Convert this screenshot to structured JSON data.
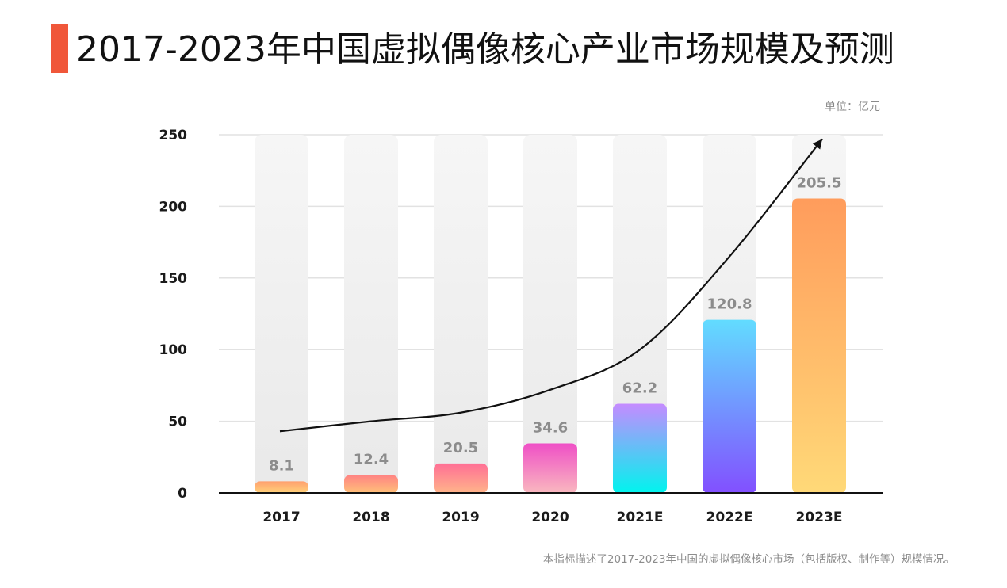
{
  "header": {
    "title": "2017-2023年中国虚拟偶像核心产业市场规模及预测",
    "accent_color": "#f0573a"
  },
  "unit_label": "单位：亿元",
  "footnote": "本指标描述了2017-2023年中国的虚拟偶像核心市场（包括版权、制作等）规模情况。",
  "chart_data": {
    "type": "bar",
    "title": "2017-2023年中国虚拟偶像核心产业市场规模及预测",
    "xlabel": "",
    "ylabel": "",
    "unit": "亿元",
    "categories": [
      "2017",
      "2018",
      "2019",
      "2020",
      "2021E",
      "2022E",
      "2023E"
    ],
    "values": [
      8.1,
      12.4,
      20.5,
      34.6,
      62.2,
      120.8,
      205.5
    ],
    "value_labels": [
      "8.1",
      "12.4",
      "20.5",
      "34.6",
      "62.2",
      "120.8",
      "205.5"
    ],
    "ylim": [
      0,
      250
    ],
    "yticks": [
      0,
      50,
      100,
      150,
      200,
      250
    ],
    "ytick_labels": [
      "0",
      "50",
      "100",
      "150",
      "200",
      "250"
    ],
    "grid": true,
    "background_bar_color": "#f0f0f0",
    "bar_gradients": [
      [
        "#ffd27a",
        "#ff9f6e"
      ],
      [
        "#ffc079",
        "#ff8383"
      ],
      [
        "#ffb48a",
        "#ff6f95"
      ],
      [
        "#f9b8bf",
        "#ef4fc6"
      ],
      [
        "#00f4ee",
        "#c58bff"
      ],
      [
        "#8250ff",
        "#62dcff"
      ],
      [
        "#ffd978",
        "#ff9c5c"
      ]
    ],
    "trend_line": {
      "description": "growth trend arrow",
      "values": [
        43,
        50,
        56,
        72,
        100,
        165,
        247
      ]
    }
  }
}
